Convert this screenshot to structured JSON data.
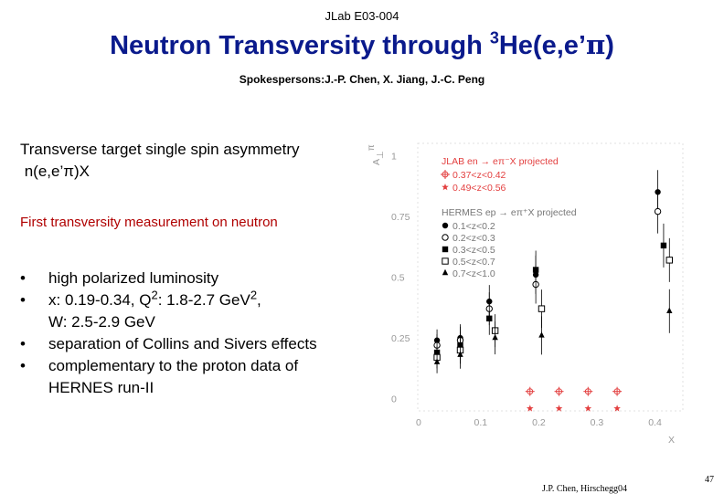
{
  "header": {
    "experiment": "JLab E03-004",
    "title_main": "Neutron Transversity through ",
    "title_sup": "3",
    "title_reaction": "He(e,e’",
    "title_pi": "π",
    "title_close": ")",
    "spokespersons": "Spokespersons:J.-P. Chen, X. Jiang, J.-C. Peng"
  },
  "content": {
    "subtitle_line1": "Transverse target single spin asymmetry",
    "subtitle_line2": " n(e,e’π)X",
    "highlight": "First transversity measurement on neutron",
    "bullet_glyph": "•",
    "bullets": [
      {
        "text": "high polarized luminosity"
      },
      {
        "pre": "x: 0.19-0.34, Q",
        "sup1": "2",
        "mid": ": 1.8-2.7 GeV",
        "sup2": "2",
        "post": ",",
        "line2": "W: 2.5-2.9 GeV"
      },
      {
        "text": "separation of Collins and Sivers effects"
      },
      {
        "line1": "complementary to the proton data of",
        "line2": "HERNES run-II"
      }
    ]
  },
  "plot": {
    "yaxis_label": "A",
    "yaxis_sub": "⊥",
    "yaxis_sup": "π",
    "xaxis_label": "X",
    "y_ticks": [
      "1",
      "0.75",
      "0.5",
      "0.25",
      "0"
    ],
    "x_ticks": [
      "0",
      "0.1",
      "0.2",
      "0.3",
      "0.4"
    ],
    "legend_jlab_title": "JLAB  en → eπ⁻X  projected",
    "legend_jlab": [
      "0.37<z<0.42",
      "0.49<z<0.56"
    ],
    "legend_hermes_title": "HERMES  ep → eπ⁺X  projected",
    "legend_hermes": [
      "0.1<z<0.2",
      "0.2<z<0.3",
      "0.3<z<0.5",
      "0.5<z<0.7",
      "0.7<z<1.0"
    ],
    "jlab_color": "#e34040"
  },
  "chart_data": {
    "type": "scatter",
    "title": "",
    "xlabel": "X",
    "ylabel": "A⊥",
    "xlim": [
      0,
      0.45
    ],
    "ylim": [
      -0.05,
      1.05
    ],
    "series": [
      {
        "name": "JLAB en → eπ⁻X projected 0.37<z<0.42",
        "marker": "open-cross",
        "color": "#e34040",
        "x": [
          0.19,
          0.24,
          0.29,
          0.34
        ],
        "y": [
          0.03,
          0.03,
          0.03,
          0.03
        ]
      },
      {
        "name": "JLAB en → eπ⁻X projected 0.49<z<0.56",
        "marker": "star",
        "color": "#e34040",
        "x": [
          0.19,
          0.24,
          0.29,
          0.34
        ],
        "y": [
          -0.04,
          -0.04,
          -0.04,
          -0.04
        ]
      },
      {
        "name": "HERMES ep → eπ⁺X projected 0.1<z<0.2",
        "marker": "filled-circle",
        "color": "#000000",
        "x": [
          0.03,
          0.07,
          0.12,
          0.2,
          0.41
        ],
        "y": [
          0.24,
          0.25,
          0.4,
          0.51,
          0.85
        ]
      },
      {
        "name": "HERMES ep → eπ⁺X projected 0.2<z<0.3",
        "marker": "open-circle",
        "color": "#000000",
        "x": [
          0.03,
          0.07,
          0.12,
          0.2,
          0.41
        ],
        "y": [
          0.22,
          0.24,
          0.37,
          0.47,
          0.77
        ]
      },
      {
        "name": "HERMES ep → eπ⁺X projected 0.3<z<0.5",
        "marker": "filled-square",
        "color": "#000000",
        "x": [
          0.03,
          0.07,
          0.12,
          0.2,
          0.42
        ],
        "y": [
          0.19,
          0.22,
          0.33,
          0.53,
          0.63
        ]
      },
      {
        "name": "HERMES ep → eπ⁺X projected 0.5<z<0.7",
        "marker": "open-square",
        "color": "#000000",
        "x": [
          0.03,
          0.07,
          0.13,
          0.21,
          0.43
        ],
        "y": [
          0.17,
          0.2,
          0.28,
          0.37,
          0.57
        ]
      },
      {
        "name": "HERMES ep → eπ⁺X projected 0.7<z<1.0",
        "marker": "filled-triangle",
        "color": "#000000",
        "x": [
          0.03,
          0.07,
          0.13,
          0.21,
          0.43
        ],
        "y": [
          0.15,
          0.18,
          0.25,
          0.26,
          0.36
        ]
      }
    ]
  },
  "footer": {
    "credit": "J.P. Chen, Hirschegg04",
    "page": "47"
  }
}
